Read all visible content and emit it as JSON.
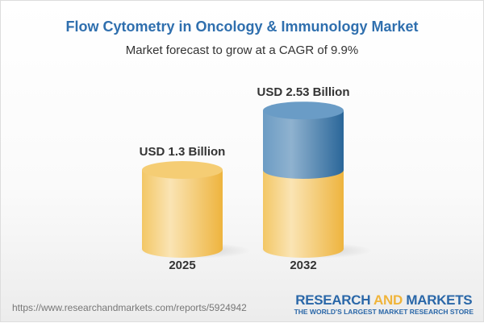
{
  "title": "Flow Cytometry in Oncology & Immunology Market",
  "subtitle": "Market forecast to grow at a CAGR of 9.9%",
  "chart_data": {
    "type": "bar",
    "style": "3d-cylinder",
    "categories": [
      "2025",
      "2032"
    ],
    "values": [
      1.3,
      2.53
    ],
    "data_labels": [
      "USD 1.3 Billion",
      "USD 2.53 Billion"
    ],
    "unit": "USD Billion",
    "colors": {
      "base": "#f2c25a",
      "growth": "#3f7fb3"
    }
  },
  "footer": {
    "url": "https://www.researchandmarkets.com/reports/5924942",
    "logo": {
      "part1": "RESEARCH ",
      "part2": "AND",
      "part3": " MARKETS",
      "tagline": "THE WORLD'S LARGEST MARKET RESEARCH STORE"
    }
  }
}
